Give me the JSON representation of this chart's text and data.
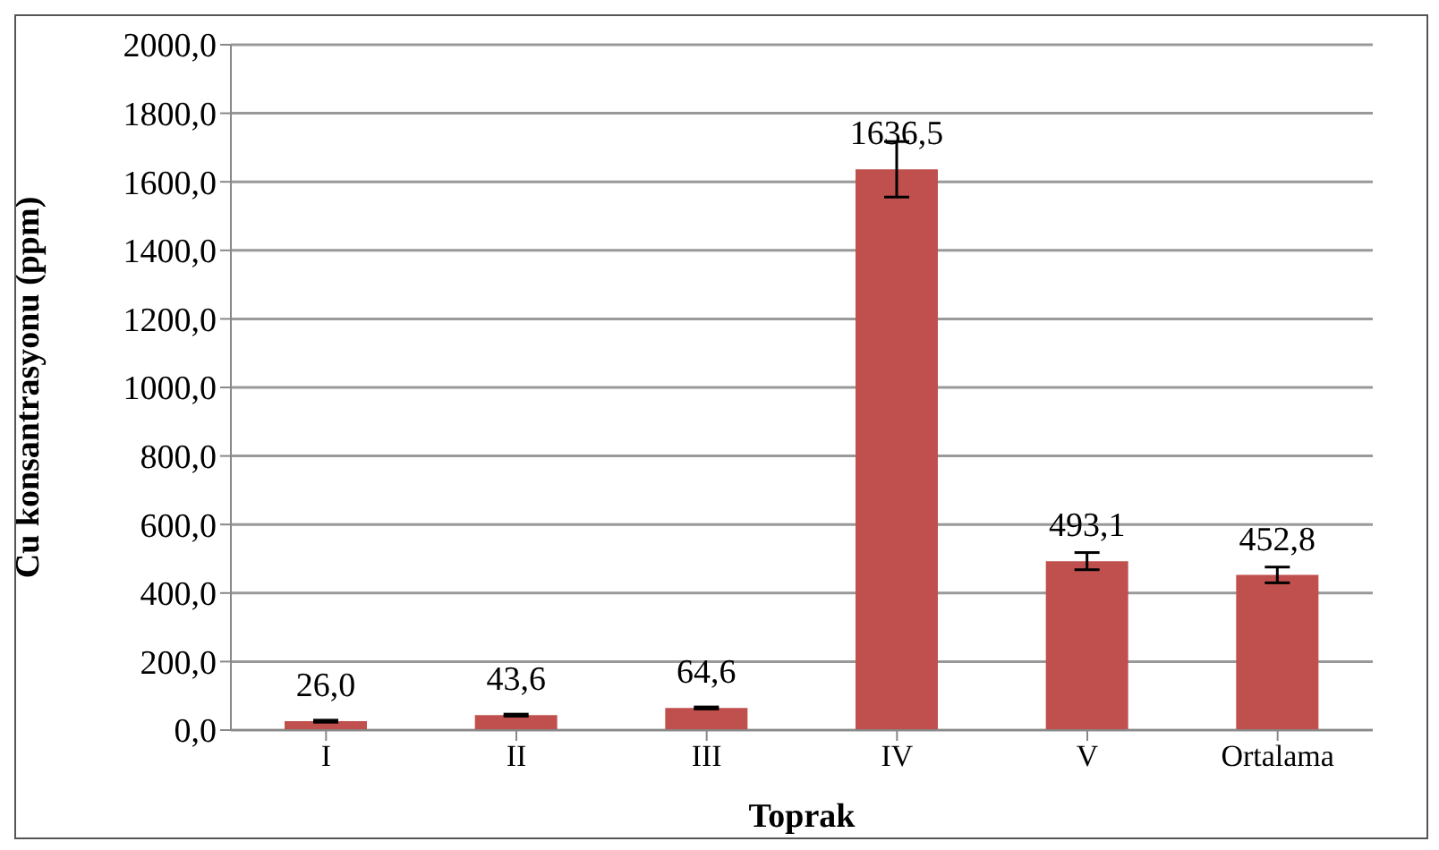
{
  "chart_data": {
    "type": "bar",
    "xlabel": "Toprak",
    "ylabel": "Cu konsantrasyonu (ppm)",
    "categories": [
      "I",
      "II",
      "III",
      "IV",
      "V",
      "Ortalama"
    ],
    "values": [
      26.0,
      43.6,
      64.6,
      1636.5,
      493.1,
      452.8
    ],
    "errors": [
      3,
      3,
      3,
      81,
      25,
      23
    ],
    "value_labels": [
      "26,0",
      "43,6",
      "64,6",
      "1636,5",
      "493,1",
      "452,8"
    ],
    "color": "#c0504d",
    "ylim": [
      0,
      2000
    ],
    "yticks": [
      {
        "value": 0,
        "label": "0,0"
      },
      {
        "value": 200,
        "label": "200,0"
      },
      {
        "value": 400,
        "label": "400,0"
      },
      {
        "value": 600,
        "label": "600,0"
      },
      {
        "value": 800,
        "label": "800,0"
      },
      {
        "value": 1000,
        "label": "1000,0"
      },
      {
        "value": 1200,
        "label": "1200,0"
      },
      {
        "value": 1400,
        "label": "1400,0"
      },
      {
        "value": 1600,
        "label": "1600,0"
      },
      {
        "value": 1800,
        "label": "1800,0"
      },
      {
        "value": 2000,
        "label": "2000,0"
      }
    ],
    "grid": "y",
    "legend": false
  }
}
